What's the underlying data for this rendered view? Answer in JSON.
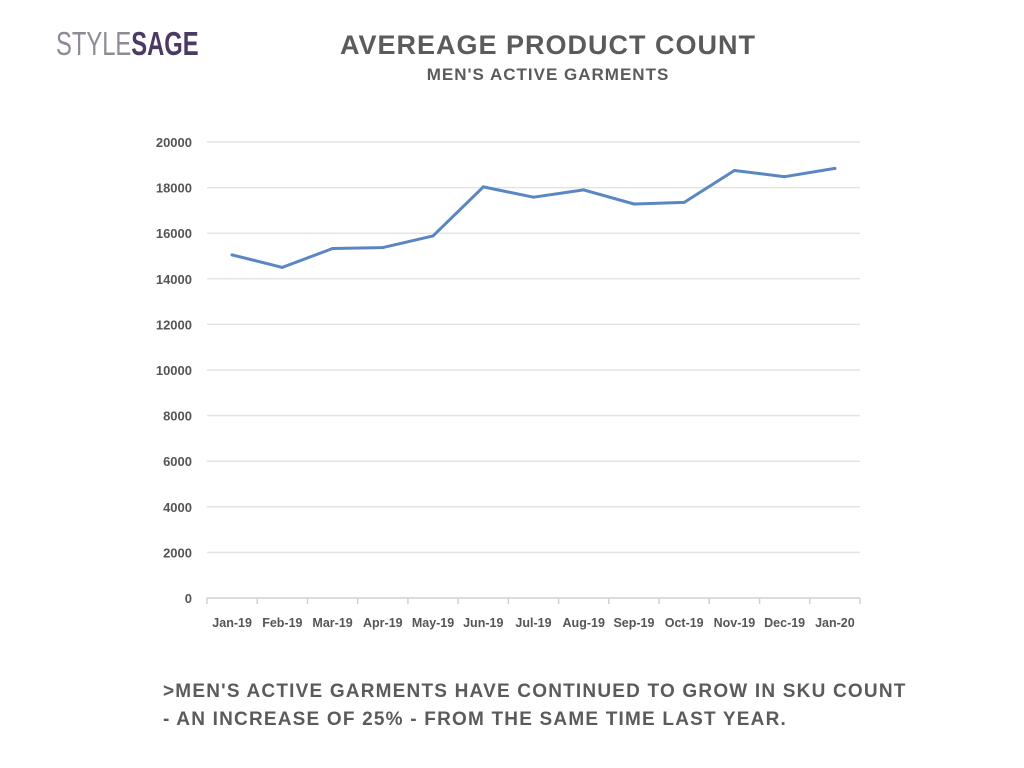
{
  "logo": {
    "part1": "STYLE",
    "part2": "SAGE"
  },
  "header": {
    "title": "AVEREAGE PRODUCT COUNT",
    "subtitle": "MEN'S ACTIVE GARMENTS"
  },
  "caption": {
    "line1": ">MEN'S ACTIVE GARMENTS HAVE CONTINUED TO GROW IN SKU COUNT",
    "line2": "- AN INCREASE OF 25% - FROM THE SAME TIME LAST YEAR."
  },
  "colors": {
    "line": "#5b86c4",
    "grid": "#e4e4e4",
    "axis": "#d0d0d0",
    "tick_text": "#555555"
  },
  "chart_data": {
    "type": "line",
    "title": "AVEREAGE PRODUCT COUNT",
    "subtitle": "MEN'S ACTIVE GARMENTS",
    "xlabel": "",
    "ylabel": "",
    "categories": [
      "Jan-19",
      "Feb-19",
      "Mar-19",
      "Apr-19",
      "May-19",
      "Jun-19",
      "Jul-19",
      "Aug-19",
      "Sep-19",
      "Oct-19",
      "Nov-19",
      "Dec-19",
      "Jan-20"
    ],
    "series": [
      {
        "values": [
          15050,
          14500,
          15330,
          15370,
          15880,
          18030,
          17580,
          17900,
          17280,
          17350,
          18750,
          18480,
          18840
        ]
      }
    ],
    "ylim": [
      0,
      20000
    ],
    "yticks": [
      "0",
      "2000",
      "4000",
      "6000",
      "8000",
      "10000",
      "12000",
      "14000",
      "16000",
      "18000",
      "20000"
    ],
    "grid": true,
    "legend": "none"
  }
}
